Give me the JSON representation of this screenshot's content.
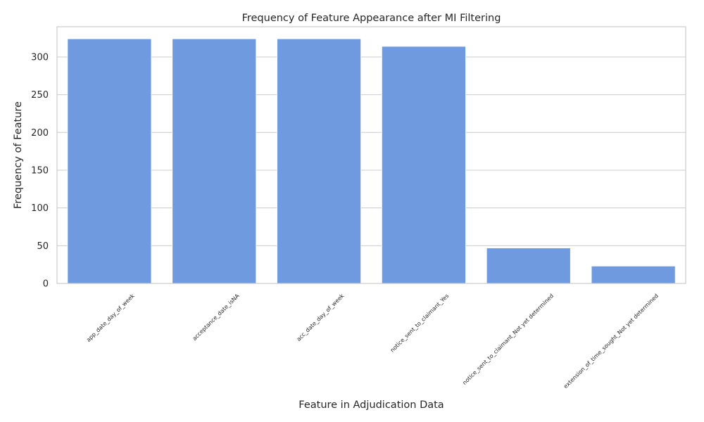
{
  "chart_data": {
    "type": "bar",
    "title": "Frequency of Feature Appearance after MI Filtering",
    "xlabel": "Feature in Adjudication Data",
    "ylabel": "Frequency of Feature",
    "categories": [
      "app_date_day_of_week",
      "acceptance_date_isNA",
      "acc_date_day_of_week",
      "notice_sent_to_claimant_Yes",
      "notice_sent_to_claimant_Not yet determined",
      "extension_of_time_sought_Not yet determined"
    ],
    "values": [
      324,
      324,
      324,
      314,
      47,
      23
    ],
    "ylim": [
      0,
      340
    ],
    "yticks": [
      0,
      50,
      100,
      150,
      200,
      250,
      300
    ],
    "grid": "horizontal",
    "bar_color": "#6f9ae0",
    "x_tick_rotation": -45
  }
}
